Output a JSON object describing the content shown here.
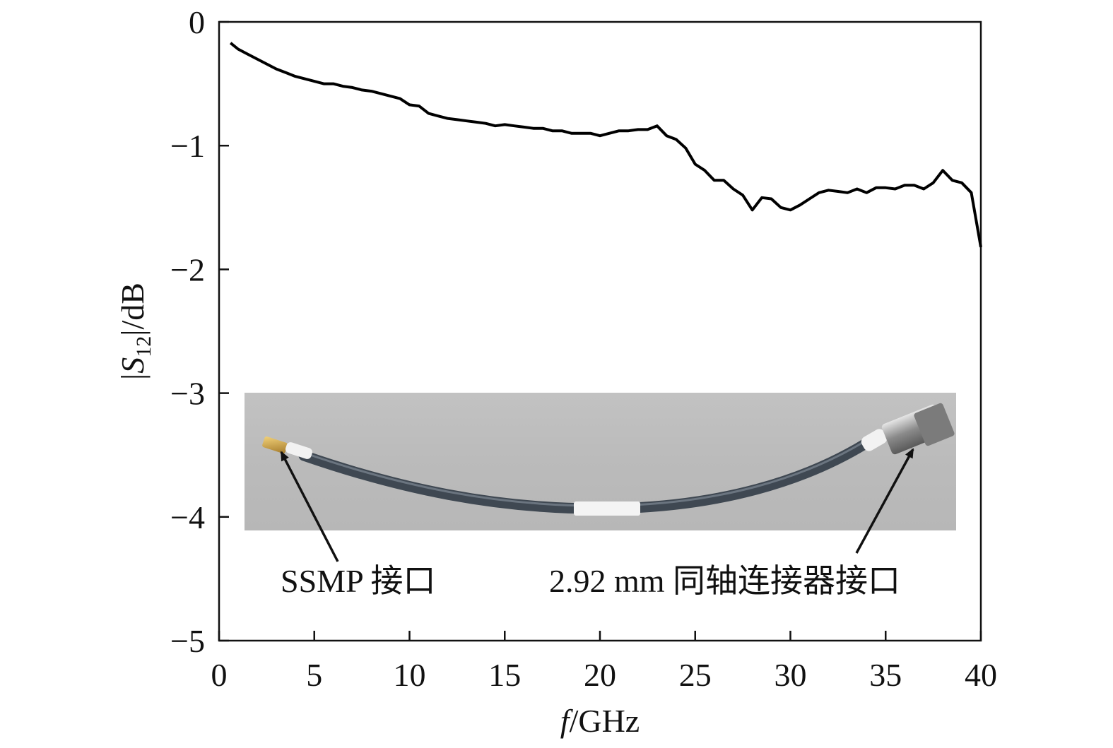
{
  "chart_data": {
    "type": "line",
    "title": "",
    "xlabel": {
      "italic": "f",
      "rest": "/GHz"
    },
    "ylabel": {
      "pre": "|",
      "sym": "S",
      "sub": "12",
      "post": "|/dB"
    },
    "xlim": [
      0,
      40
    ],
    "ylim": [
      -5,
      0
    ],
    "xticks": [
      0,
      5,
      10,
      15,
      20,
      25,
      30,
      35,
      40
    ],
    "yticks": [
      0,
      -1,
      -2,
      -3,
      -4,
      -5
    ],
    "xtick_labels": [
      "0",
      "5",
      "10",
      "15",
      "20",
      "25",
      "30",
      "35",
      "40"
    ],
    "ytick_labels": [
      "0",
      "−1",
      "−2",
      "−3",
      "−4",
      "−5"
    ],
    "grid": false,
    "legend": "none",
    "line_color": "#000000",
    "series": [
      {
        "x": [
          0.6,
          1,
          1.5,
          2,
          2.5,
          3,
          3.5,
          4,
          4.5,
          5,
          5.5,
          6,
          6.5,
          7,
          7.5,
          8,
          8.5,
          9,
          9.5,
          10,
          10.5,
          11,
          11.5,
          12,
          12.5,
          13,
          13.5,
          14,
          14.5,
          15,
          15.5,
          16,
          16.5,
          17,
          17.5,
          18,
          18.5,
          19,
          19.5,
          20,
          20.5,
          21,
          21.5,
          22,
          22.5,
          23,
          23.5,
          24,
          24.5,
          25,
          25.5,
          26,
          26.5,
          27,
          27.5,
          28,
          28.5,
          29,
          29.5,
          30,
          30.5,
          31,
          31.5,
          32,
          32.5,
          33,
          33.5,
          34,
          34.5,
          35,
          35.5,
          36,
          36.5,
          37,
          37.5,
          38,
          38.5,
          39,
          39.5,
          40
        ],
        "y": [
          -0.17,
          -0.22,
          -0.26,
          -0.3,
          -0.34,
          -0.38,
          -0.41,
          -0.44,
          -0.46,
          -0.48,
          -0.5,
          -0.5,
          -0.52,
          -0.53,
          -0.55,
          -0.56,
          -0.58,
          -0.6,
          -0.62,
          -0.67,
          -0.68,
          -0.74,
          -0.76,
          -0.78,
          -0.79,
          -0.8,
          -0.81,
          -0.82,
          -0.84,
          -0.83,
          -0.84,
          -0.85,
          -0.86,
          -0.86,
          -0.88,
          -0.88,
          -0.9,
          -0.9,
          -0.9,
          -0.92,
          -0.9,
          -0.88,
          -0.88,
          -0.87,
          -0.87,
          -0.84,
          -0.92,
          -0.95,
          -1.02,
          -1.15,
          -1.2,
          -1.28,
          -1.28,
          -1.35,
          -1.4,
          -1.52,
          -1.42,
          -1.43,
          -1.5,
          -1.52,
          -1.48,
          -1.43,
          -1.38,
          -1.36,
          -1.37,
          -1.38,
          -1.35,
          -1.38,
          -1.34,
          -1.34,
          -1.35,
          -1.32,
          -1.32,
          -1.35,
          -1.3,
          -1.2,
          -1.28,
          -1.3,
          -1.38,
          -1.82
        ]
      }
    ],
    "annotations": [
      {
        "text": "SSMP 接口"
      },
      {
        "text": "2.92 mm 同轴连接器接口"
      }
    ]
  },
  "inset": {
    "description_icon": "cable-photo",
    "background": "#bdbdbd",
    "cable_color": "#3e4750",
    "sleeve_color": "#f5f5f5"
  }
}
